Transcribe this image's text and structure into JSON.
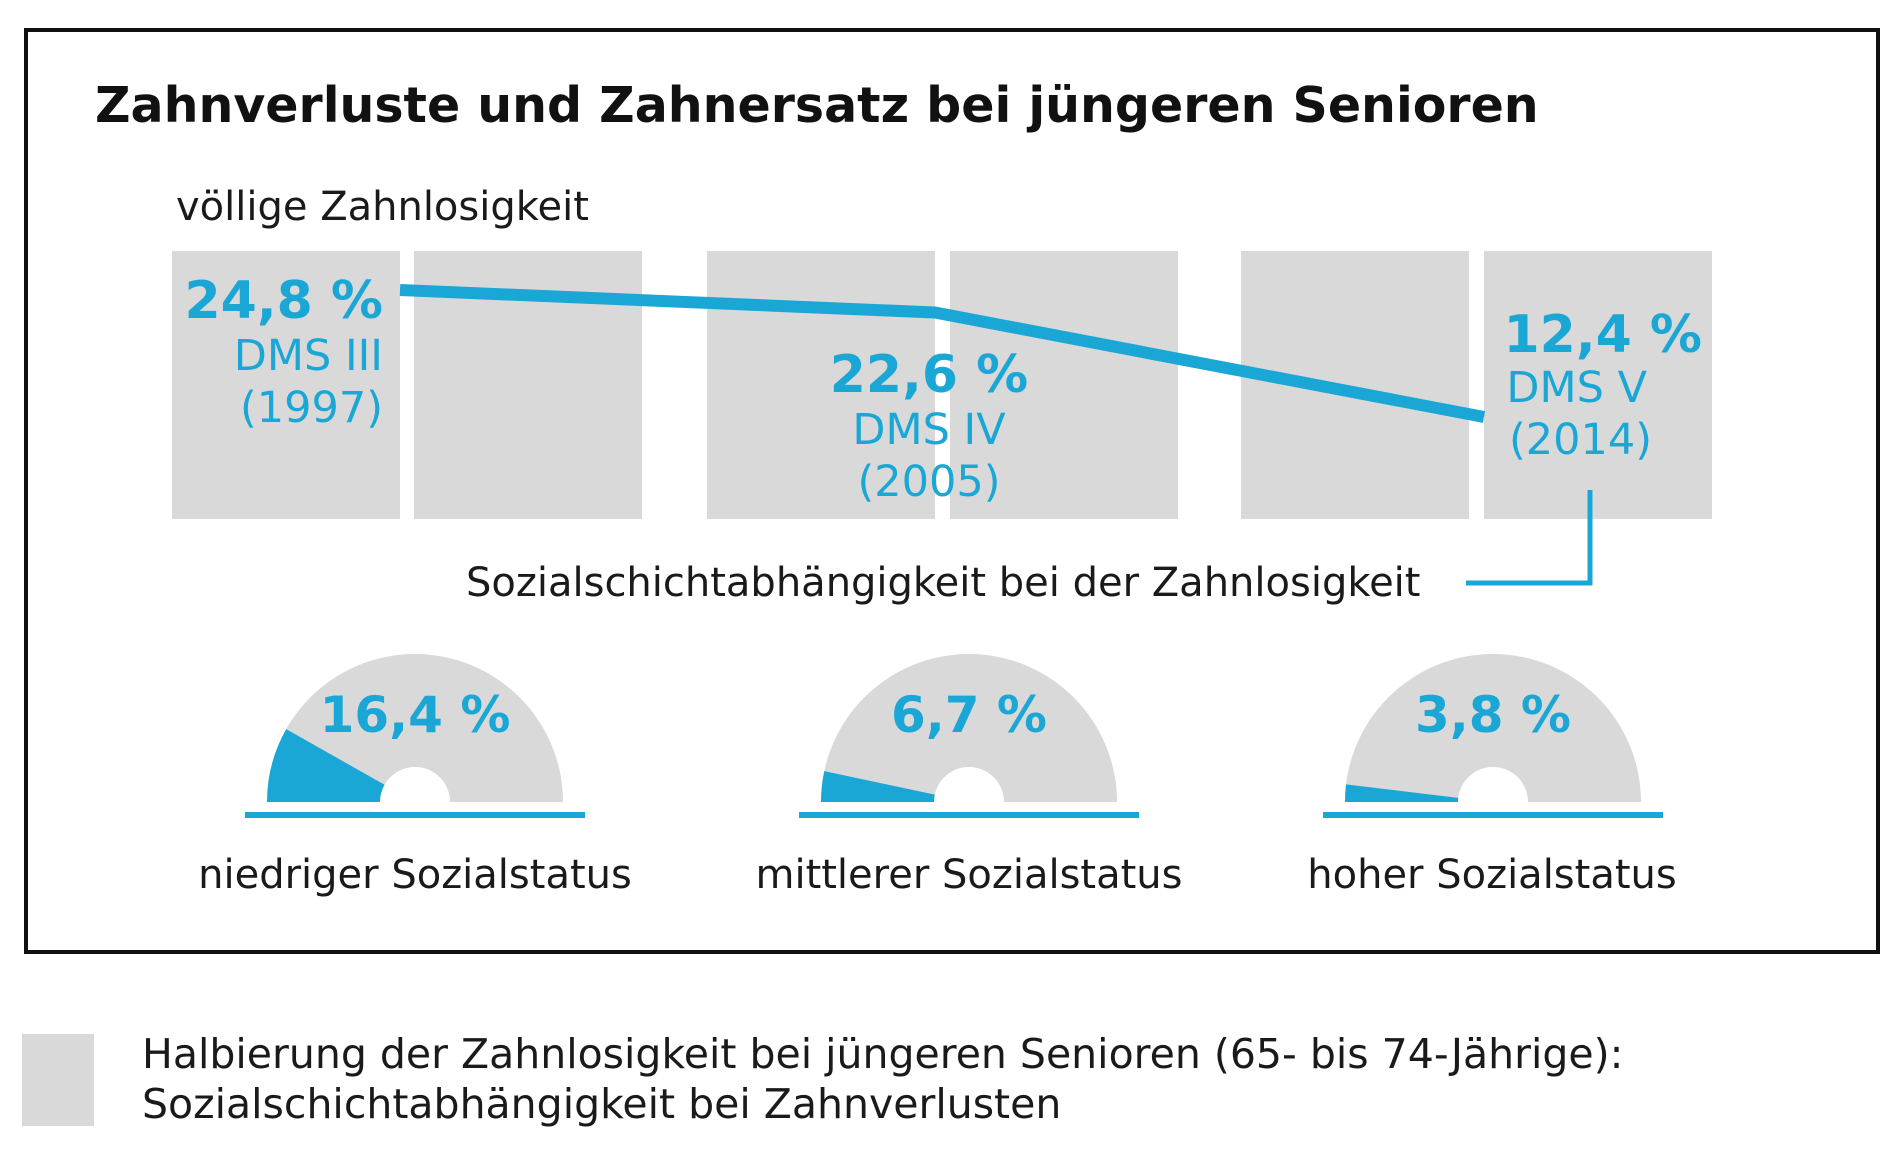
{
  "title": "Zahnverluste und Zahnersatz bei jüngeren Senioren",
  "colors": {
    "accent": "#1aa7d6",
    "bar": "#d9d9d9",
    "frame": "#111111",
    "text": "#1a1a1a"
  },
  "chart_data": [
    {
      "type": "line",
      "title": "völlige Zahnlosigkeit",
      "unit": "%",
      "series": [
        {
          "points": [
            {
              "value": 24.8,
              "value_label": "24,8 %",
              "study": "DMS III",
              "year": "(1997)"
            },
            {
              "value": 22.6,
              "value_label": "22,6 %",
              "study": "DMS IV",
              "year": "(2005)"
            },
            {
              "value": 12.4,
              "value_label": "12,4 %",
              "study": "DMS V",
              "year": "(2014)"
            }
          ]
        }
      ]
    },
    {
      "type": "gauge",
      "title": "Sozialschichtabhängigkeit bei der Zahnlosigkeit",
      "unit": "%",
      "items": [
        {
          "label": "niedriger Sozialstatus",
          "value": 16.4,
          "value_label": "16,4 %"
        },
        {
          "label": "mittlerer Sozialstatus",
          "value": 6.7,
          "value_label": "6,7 %"
        },
        {
          "label": "hoher Sozialstatus",
          "value": 3.8,
          "value_label": "3,8 %"
        }
      ]
    }
  ],
  "legend": {
    "line1": "Halbierung der Zahnlosigkeit bei jüngeren Senioren (65- bis 74-Jährige):",
    "line2": "Sozialschichtabhängigkeit bei Zahnverlusten"
  }
}
